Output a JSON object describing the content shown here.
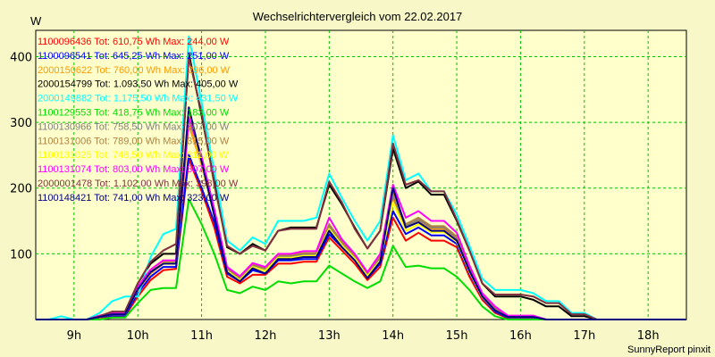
{
  "chart_data": {
    "type": "line",
    "title": "Wechselrichtervergleich vom 22.02.2017",
    "ylabel": "W",
    "footer": "SunnyReport pinxit",
    "ylim": [
      0,
      440
    ],
    "yticks": [
      100,
      200,
      300,
      400
    ],
    "xlim": [
      8.4,
      18.6
    ],
    "xticks": [
      9,
      10,
      11,
      12,
      13,
      14,
      15,
      16,
      17,
      18
    ],
    "xtick_labels": [
      "9h",
      "10h",
      "11h",
      "12h",
      "13h",
      "14h",
      "15h",
      "16h",
      "17h",
      "18h"
    ],
    "grid": true,
    "legend_placement": "top-left",
    "x": [
      8.4,
      8.6,
      8.8,
      9.0,
      9.2,
      9.4,
      9.6,
      9.8,
      10.0,
      10.2,
      10.4,
      10.6,
      10.8,
      11.0,
      11.2,
      11.4,
      11.6,
      11.8,
      12.0,
      12.2,
      12.4,
      12.6,
      12.8,
      13.0,
      13.2,
      13.4,
      13.6,
      13.8,
      14.0,
      14.2,
      14.4,
      14.6,
      14.8,
      15.0,
      15.2,
      15.4,
      15.6,
      15.8,
      16.0,
      16.2,
      16.4,
      16.6,
      16.8,
      17.0,
      17.2,
      17.4,
      17.6,
      17.8,
      18.0,
      18.2,
      18.4,
      18.6
    ],
    "series": [
      {
        "name": "1100096436 Tot: 610,75 Wh Max: 244,00 W",
        "color": "#ff0000",
        "values": [
          0,
          0,
          0,
          0,
          0,
          3,
          5,
          5,
          35,
          60,
          75,
          77,
          244,
          195,
          140,
          65,
          55,
          68,
          68,
          85,
          85,
          88,
          88,
          125,
          105,
          85,
          60,
          80,
          155,
          120,
          132,
          120,
          120,
          110,
          65,
          30,
          10,
          2,
          2,
          2,
          0,
          0,
          0,
          0,
          0,
          0,
          0,
          0,
          0,
          0,
          0,
          0
        ]
      },
      {
        "name": "1100096541 Tot: 645,25 Wh Max: 251,00 W",
        "color": "#0000ff",
        "values": [
          0,
          0,
          0,
          0,
          0,
          4,
          6,
          6,
          40,
          65,
          80,
          80,
          251,
          200,
          148,
          70,
          58,
          75,
          70,
          90,
          90,
          92,
          92,
          130,
          110,
          90,
          63,
          85,
          165,
          130,
          140,
          128,
          128,
          115,
          70,
          33,
          12,
          3,
          3,
          3,
          0,
          0,
          0,
          0,
          0,
          0,
          0,
          0,
          0,
          0,
          0,
          0
        ]
      },
      {
        "name": "2000150622 Tot: 760,00 Wh Max: 296,00 W",
        "color": "#ff9900",
        "values": [
          0,
          0,
          0,
          0,
          0,
          5,
          8,
          8,
          45,
          70,
          85,
          85,
          296,
          235,
          160,
          75,
          62,
          80,
          75,
          95,
          95,
          98,
          98,
          140,
          115,
          95,
          68,
          92,
          185,
          140,
          150,
          138,
          138,
          122,
          75,
          36,
          15,
          4,
          4,
          4,
          0,
          0,
          0,
          0,
          0,
          0,
          0,
          0,
          0,
          0,
          0,
          0
        ]
      },
      {
        "name": "2000154799 Tot: 1.093,50 Wh Max: 405,00 W",
        "color": "#000000",
        "values": [
          0,
          0,
          0,
          0,
          0,
          5,
          12,
          12,
          55,
          85,
          100,
          100,
          405,
          310,
          210,
          110,
          100,
          115,
          105,
          135,
          140,
          140,
          140,
          205,
          175,
          140,
          108,
          135,
          260,
          200,
          210,
          190,
          190,
          150,
          105,
          55,
          35,
          35,
          35,
          30,
          20,
          20,
          5,
          5,
          0,
          0,
          0,
          0,
          0,
          0,
          0,
          0
        ]
      },
      {
        "name": "2000149882 Tot: 1.175,50 Wh Max: 431,50 W",
        "color": "#00ffff",
        "values": [
          0,
          0,
          5,
          0,
          0,
          10,
          28,
          35,
          35,
          95,
          130,
          138,
          431,
          330,
          225,
          120,
          105,
          125,
          115,
          150,
          150,
          150,
          155,
          222,
          185,
          150,
          120,
          150,
          280,
          212,
          222,
          195,
          195,
          160,
          112,
          62,
          45,
          45,
          45,
          40,
          28,
          28,
          10,
          10,
          0,
          0,
          0,
          0,
          0,
          0,
          0,
          0
        ]
      },
      {
        "name": "1100129553 Tot: 418,75 Wh Max: 183,00 W",
        "color": "#00dd00",
        "values": [
          0,
          0,
          0,
          0,
          0,
          0,
          3,
          3,
          25,
          45,
          48,
          48,
          183,
          145,
          100,
          45,
          40,
          50,
          45,
          58,
          55,
          58,
          58,
          82,
          70,
          58,
          48,
          58,
          112,
          80,
          82,
          78,
          78,
          65,
          45,
          20,
          5,
          0,
          0,
          0,
          0,
          0,
          0,
          0,
          0,
          0,
          0,
          0,
          0,
          0,
          0,
          0
        ]
      },
      {
        "name": "1100130966 Tot: 758,50 Wh Max: 307,00 W",
        "color": "#808080",
        "values": [
          0,
          0,
          0,
          0,
          0,
          4,
          8,
          8,
          46,
          72,
          86,
          86,
          307,
          240,
          162,
          76,
          62,
          82,
          76,
          96,
          96,
          99,
          99,
          142,
          116,
          96,
          69,
          94,
          188,
          142,
          152,
          140,
          140,
          124,
          76,
          37,
          16,
          5,
          5,
          5,
          0,
          0,
          0,
          0,
          0,
          0,
          0,
          0,
          0,
          0,
          0,
          0
        ]
      },
      {
        "name": "1100131006 Tot: 789,00 Wh Max: 315,00 W",
        "color": "#b08040",
        "values": [
          0,
          0,
          0,
          0,
          0,
          5,
          9,
          9,
          48,
          74,
          88,
          88,
          315,
          245,
          165,
          78,
          64,
          84,
          78,
          98,
          98,
          101,
          101,
          145,
          118,
          98,
          70,
          96,
          192,
          145,
          155,
          142,
          142,
          126,
          78,
          38,
          17,
          5,
          5,
          5,
          0,
          0,
          0,
          0,
          0,
          0,
          0,
          0,
          0,
          0,
          0,
          0
        ]
      },
      {
        "name": "1100131025 Tot: 748,50 Wh Max: 311,00 W",
        "color": "#ffff00",
        "values": [
          0,
          0,
          0,
          0,
          0,
          4,
          8,
          8,
          46,
          72,
          86,
          86,
          311,
          238,
          160,
          74,
          60,
          80,
          74,
          94,
          94,
          97,
          97,
          138,
          113,
          93,
          66,
          90,
          178,
          135,
          145,
          133,
          133,
          118,
          72,
          34,
          14,
          4,
          4,
          4,
          0,
          0,
          0,
          0,
          0,
          0,
          0,
          0,
          0,
          0,
          0,
          0
        ]
      },
      {
        "name": "1100131074 Tot: 803,00 Wh Max: 307,00 W",
        "color": "#ff00ff",
        "values": [
          0,
          0,
          0,
          0,
          0,
          6,
          10,
          10,
          50,
          76,
          90,
          90,
          307,
          248,
          168,
          80,
          66,
          86,
          80,
          100,
          100,
          104,
          104,
          155,
          122,
          100,
          72,
          100,
          205,
          155,
          165,
          150,
          150,
          132,
          82,
          40,
          20,
          6,
          6,
          6,
          0,
          0,
          0,
          0,
          0,
          0,
          0,
          0,
          0,
          0,
          0,
          0
        ]
      },
      {
        "name": "2000001478 Tot: 1.102,00 Wh Max: 398,00 W",
        "color": "#803040",
        "values": [
          0,
          0,
          0,
          0,
          0,
          5,
          12,
          12,
          55,
          88,
          105,
          115,
          398,
          315,
          205,
          112,
          100,
          112,
          105,
          135,
          138,
          138,
          138,
          210,
          178,
          138,
          108,
          135,
          268,
          205,
          212,
          195,
          195,
          152,
          105,
          55,
          38,
          38,
          38,
          35,
          25,
          25,
          8,
          8,
          0,
          0,
          0,
          0,
          0,
          0,
          0,
          0
        ]
      },
      {
        "name": "1100148421 Tot: 741,00 Wh Max: 323,00 W",
        "color": "#000080",
        "values": [
          0,
          0,
          0,
          0,
          0,
          4,
          8,
          8,
          46,
          72,
          85,
          85,
          323,
          240,
          158,
          72,
          58,
          78,
          70,
          92,
          92,
          95,
          95,
          135,
          110,
          90,
          63,
          88,
          200,
          140,
          148,
          135,
          135,
          120,
          74,
          35,
          14,
          4,
          4,
          4,
          0,
          0,
          0,
          0,
          0,
          0,
          0,
          0,
          0,
          0,
          0,
          0
        ]
      }
    ]
  }
}
